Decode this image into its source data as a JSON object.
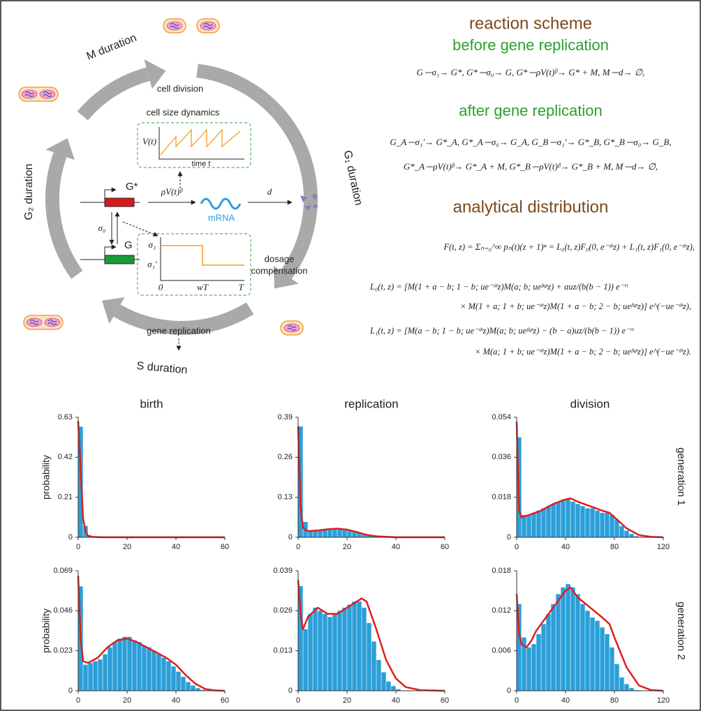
{
  "diagram": {
    "m_duration": "M duration",
    "g1_duration": "G₁ duration",
    "g2_duration": "G₂ duration",
    "s_duration": "S duration",
    "cell_division": "cell division",
    "cell_size_dynamics": "cell size dynamics",
    "volume": "V(t)",
    "time": "time t",
    "gene_active": "G*",
    "gene_inactive": "G",
    "switch_off": "σ₀",
    "transcription": "ρV(t)ᵝ",
    "degradation": "d",
    "mrna": "mRNA",
    "rate_high": "σ₁",
    "rate_low": "σ₁′",
    "t_zero": "0",
    "t_replication": "wT",
    "t_period": "T",
    "dosage_compensation": [
      "dosage",
      "compensation"
    ],
    "gene_replication": "gene replication"
  },
  "scheme": {
    "title": "reaction scheme",
    "before_title": "before gene replication",
    "before": "G ─σ₁→ G*,   G* ─σ₀→ G,   G* ─ρV(t)ᵝ→ G* + M,   M ─d→ ∅,",
    "after_title": "after gene replication",
    "after": [
      "G_A ─σ₁′→ G*_A,   G*_A ─σ₀→ G_A,   G_B ─σ₁′→ G*_B,   G*_B ─σ₀→ G_B,",
      "G*_A ─ρV(t)ᵝ→ G*_A + M,   G*_B ─ρV(t)ᵝ→ G*_B + M,   M ─d→ ∅,"
    ],
    "distribution_title": "analytical distribution",
    "distribution": [
      "F(t, z) = Σₙ₌₀^∞ pₙ(t)(z + 1)ⁿ = L₀(t, z)F₀(0, e⁻ᵈᵗz) + L₁(t, z)F₁(0, e⁻ᵈᵗz),",
      "L₀(t, z) = [M(1 + a − b; 1 − b; ue⁻ᵈᵗz)M(a; b; ueᵝᵍᵗz) + auz/(b(b − 1)) e⁻ʳᵗ",
      "× M(1 + a; 1 + b; ue⁻ᵈᵗz)M(1 + a − b; 2 − b; ueᵝᵍᵗz)] e^(−ue⁻ᵈᵗz),",
      "L₁(t, z) = [M(a − b; 1 − b; ue⁻ᵈᵗz)M(a; b; ueᵝᵍᵗz) − (b − a)uz/(b(b − 1)) e⁻ʳᵗ",
      "× M(a; 1 + b; ue⁻ᵈᵗz)M(1 + a − b; 2 − b; ueᵝᵍᵗz)] e^(−ue⁻ᵈᵗz)."
    ]
  },
  "figure": {
    "row_labels": [
      "generation 1",
      "generation 2"
    ]
  },
  "chart_data": [
    {
      "type": "histogram",
      "title": "birth",
      "ylabel": "probability",
      "color": "#2b9fd9",
      "bins": [
        0,
        2,
        4,
        6,
        8,
        10,
        12,
        14,
        16,
        18,
        20,
        22,
        24,
        26,
        28,
        30,
        32,
        34,
        36,
        38,
        40,
        42,
        44,
        46,
        48,
        50,
        52,
        54,
        56,
        58,
        60
      ],
      "values": [
        0.58,
        0.06,
        0.005,
        0,
        0,
        0,
        0,
        0,
        0,
        0,
        0,
        0,
        0,
        0,
        0,
        0,
        0,
        0,
        0,
        0,
        0,
        0,
        0,
        0,
        0,
        0,
        0,
        0,
        0,
        0
      ],
      "line": {
        "color": "#dd1f1f",
        "x": [
          0,
          1,
          2,
          3,
          4,
          6,
          10,
          20,
          40,
          60
        ],
        "values": [
          0.61,
          0.35,
          0.1,
          0.03,
          0.008,
          0.002,
          0,
          0,
          0,
          0
        ]
      },
      "xlim": [
        0,
        60
      ],
      "xticks": [
        0,
        20,
        40,
        60
      ],
      "ylim": [
        0,
        0.63
      ],
      "yticks": [
        0,
        0.21,
        0.42,
        0.63
      ]
    },
    {
      "type": "histogram",
      "title": "replication",
      "color": "#2b9fd9",
      "bins": [
        0,
        2,
        4,
        6,
        8,
        10,
        12,
        14,
        16,
        18,
        20,
        22,
        24,
        26,
        28,
        30,
        32,
        34,
        36,
        38,
        40,
        42,
        44,
        46,
        48,
        50,
        52,
        54,
        56,
        58,
        60
      ],
      "values": [
        0.36,
        0.05,
        0.02,
        0.02,
        0.022,
        0.024,
        0.026,
        0.027,
        0.028,
        0.027,
        0.024,
        0.02,
        0.014,
        0.009,
        0.005,
        0.003,
        0.001,
        0,
        0,
        0,
        0,
        0,
        0,
        0,
        0,
        0,
        0,
        0,
        0,
        0
      ],
      "line": {
        "color": "#dd1f1f",
        "x": [
          0,
          1,
          2,
          4,
          8,
          12,
          16,
          20,
          24,
          28,
          32,
          40,
          60
        ],
        "values": [
          0.36,
          0.1,
          0.03,
          0.02,
          0.022,
          0.026,
          0.028,
          0.025,
          0.017,
          0.008,
          0.003,
          0,
          0
        ]
      },
      "xlim": [
        0,
        60
      ],
      "xticks": [
        0,
        20,
        40,
        60
      ],
      "ylim": [
        0,
        0.39
      ],
      "yticks": [
        0,
        0.13,
        0.26,
        0.39
      ]
    },
    {
      "type": "histogram",
      "title": "division",
      "color": "#2b9fd9",
      "bins": [
        0,
        4,
        8,
        12,
        16,
        20,
        24,
        28,
        32,
        36,
        40,
        44,
        48,
        52,
        56,
        60,
        64,
        68,
        72,
        76,
        80,
        84,
        88,
        92,
        96,
        100,
        104,
        108,
        112,
        116,
        120
      ],
      "values": [
        0.045,
        0.01,
        0.01,
        0.011,
        0.012,
        0.013,
        0.014,
        0.015,
        0.016,
        0.017,
        0.017,
        0.016,
        0.015,
        0.014,
        0.013,
        0.013,
        0.012,
        0.011,
        0.011,
        0.01,
        0.008,
        0.005,
        0.003,
        0.0015,
        0.0005,
        0.0002,
        0,
        0,
        0,
        0
      ],
      "line": {
        "color": "#dd1f1f",
        "x": [
          0,
          2,
          4,
          10,
          20,
          30,
          40,
          44,
          50,
          60,
          70,
          76,
          80,
          90,
          100,
          110,
          120
        ],
        "values": [
          0.052,
          0.012,
          0.009,
          0.01,
          0.012,
          0.015,
          0.017,
          0.0175,
          0.016,
          0.014,
          0.012,
          0.011,
          0.009,
          0.004,
          0.001,
          0.0002,
          0
        ]
      },
      "xlim": [
        0,
        120
      ],
      "xticks": [
        0,
        40,
        80,
        120
      ],
      "ylim": [
        0,
        0.054
      ],
      "yticks": [
        0,
        0.018,
        0.036,
        0.054
      ]
    },
    {
      "type": "histogram",
      "ylabel": "probability",
      "color": "#2b9fd9",
      "bins": [
        0,
        2,
        4,
        6,
        8,
        10,
        12,
        14,
        16,
        18,
        20,
        22,
        24,
        26,
        28,
        30,
        32,
        34,
        36,
        38,
        40,
        42,
        44,
        46,
        48,
        50,
        52,
        54,
        56,
        58,
        60
      ],
      "values": [
        0.06,
        0.015,
        0.016,
        0.017,
        0.018,
        0.021,
        0.025,
        0.028,
        0.03,
        0.031,
        0.031,
        0.029,
        0.028,
        0.026,
        0.025,
        0.023,
        0.021,
        0.019,
        0.017,
        0.014,
        0.011,
        0.008,
        0.005,
        0.003,
        0.0015,
        0.0005,
        0.0002,
        0,
        0,
        0
      ],
      "line": {
        "color": "#dd1f1f",
        "x": [
          0,
          1,
          2,
          4,
          8,
          12,
          16,
          20,
          24,
          28,
          32,
          36,
          40,
          44,
          48,
          52,
          56,
          60
        ],
        "values": [
          0.066,
          0.03,
          0.017,
          0.016,
          0.019,
          0.025,
          0.029,
          0.03,
          0.028,
          0.025,
          0.022,
          0.019,
          0.015,
          0.009,
          0.004,
          0.001,
          0.0002,
          0
        ]
      },
      "xlim": [
        0,
        60
      ],
      "xticks": [
        0,
        20,
        40,
        60
      ],
      "ylim": [
        0,
        0.069
      ],
      "yticks": [
        0,
        0.023,
        0.046,
        0.069
      ]
    },
    {
      "type": "histogram",
      "color": "#2b9fd9",
      "bins": [
        0,
        2,
        4,
        6,
        8,
        10,
        12,
        14,
        16,
        18,
        20,
        22,
        24,
        26,
        28,
        30,
        32,
        34,
        36,
        38,
        40,
        42,
        44,
        46,
        48,
        50,
        52,
        54,
        56,
        58,
        60
      ],
      "values": [
        0.034,
        0.02,
        0.025,
        0.027,
        0.026,
        0.025,
        0.024,
        0.025,
        0.026,
        0.027,
        0.028,
        0.029,
        0.029,
        0.027,
        0.022,
        0.016,
        0.01,
        0.006,
        0.003,
        0.0015,
        0.0005,
        0,
        0,
        0,
        0,
        0,
        0,
        0,
        0,
        0
      ],
      "line": {
        "color": "#dd1f1f",
        "x": [
          0,
          1,
          2,
          4,
          8,
          12,
          16,
          20,
          24,
          26,
          28,
          32,
          36,
          40,
          44,
          50,
          60
        ],
        "values": [
          0.036,
          0.025,
          0.02,
          0.024,
          0.027,
          0.025,
          0.025,
          0.027,
          0.029,
          0.03,
          0.029,
          0.02,
          0.01,
          0.004,
          0.0012,
          0.0002,
          0
        ]
      },
      "xlim": [
        0,
        60
      ],
      "xticks": [
        0,
        20,
        40,
        60
      ],
      "ylim": [
        0,
        0.039
      ],
      "yticks": [
        0,
        0.013,
        0.026,
        0.039
      ]
    },
    {
      "type": "histogram",
      "color": "#2b9fd9",
      "bins": [
        0,
        4,
        8,
        12,
        16,
        20,
        24,
        28,
        32,
        36,
        40,
        44,
        48,
        52,
        56,
        60,
        64,
        68,
        72,
        76,
        80,
        84,
        88,
        92,
        96,
        100,
        104,
        108,
        112,
        116,
        120
      ],
      "values": [
        0.013,
        0.008,
        0.0065,
        0.007,
        0.0085,
        0.01,
        0.0115,
        0.013,
        0.0145,
        0.0155,
        0.016,
        0.0155,
        0.0145,
        0.013,
        0.012,
        0.011,
        0.0105,
        0.0095,
        0.0085,
        0.0065,
        0.004,
        0.002,
        0.001,
        0.0004,
        0.0001,
        0,
        0,
        0,
        0,
        0
      ],
      "line": {
        "color": "#dd1f1f",
        "x": [
          0,
          2,
          4,
          8,
          12,
          16,
          20,
          30,
          40,
          44,
          50,
          60,
          70,
          76,
          80,
          90,
          100,
          110,
          120
        ],
        "values": [
          0.0145,
          0.0085,
          0.007,
          0.0065,
          0.0075,
          0.009,
          0.01,
          0.0125,
          0.015,
          0.0155,
          0.014,
          0.0125,
          0.011,
          0.01,
          0.008,
          0.0035,
          0.0008,
          0.0001,
          0
        ]
      },
      "xlim": [
        0,
        120
      ],
      "xticks": [
        0,
        40,
        80,
        120
      ],
      "ylim": [
        0,
        0.018
      ],
      "yticks": [
        0,
        0.006,
        0.012,
        0.018
      ]
    }
  ]
}
